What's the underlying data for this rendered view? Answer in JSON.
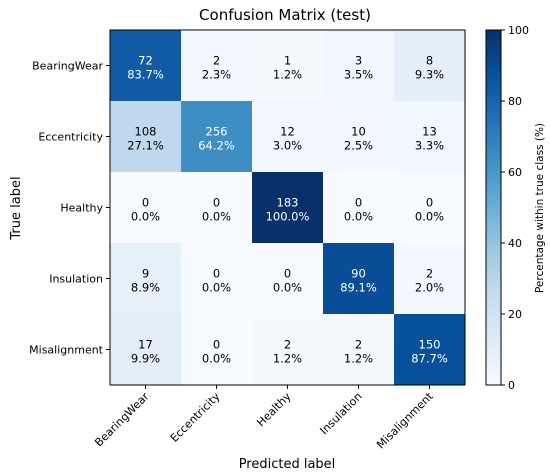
{
  "chart_data": {
    "type": "heatmap",
    "title": "Confusion Matrix (test)",
    "xlabel": "Predicted label",
    "ylabel": "True label",
    "x_categories": [
      "BearingWear",
      "Eccentricity",
      "Healthy",
      "Insulation",
      "Misalignment"
    ],
    "y_categories": [
      "BearingWear",
      "Eccentricity",
      "Healthy",
      "Insulation",
      "Misalignment"
    ],
    "counts": [
      [
        72,
        2,
        1,
        3,
        8
      ],
      [
        108,
        256,
        12,
        10,
        13
      ],
      [
        0,
        0,
        183,
        0,
        0
      ],
      [
        9,
        0,
        0,
        90,
        2
      ],
      [
        17,
        0,
        2,
        2,
        150
      ]
    ],
    "percent_labels": [
      [
        "83.7%",
        "2.3%",
        "1.2%",
        "3.5%",
        "9.3%"
      ],
      [
        "27.1%",
        "64.2%",
        "3.0%",
        "2.5%",
        "3.3%"
      ],
      [
        "0.0%",
        "0.0%",
        "100.0%",
        "0.0%",
        "0.0%"
      ],
      [
        "8.9%",
        "0.0%",
        "0.0%",
        "89.1%",
        "2.0%"
      ],
      [
        "9.9%",
        "0.0%",
        "1.2%",
        "1.2%",
        "87.7%"
      ]
    ],
    "percentages": [
      [
        83.7,
        2.3,
        1.2,
        3.5,
        9.3
      ],
      [
        27.1,
        64.2,
        3.0,
        2.5,
        3.3
      ],
      [
        0.0,
        0.0,
        100.0,
        0.0,
        0.0
      ],
      [
        8.9,
        0.0,
        0.0,
        89.1,
        2.0
      ],
      [
        9.9,
        0.0,
        1.2,
        1.2,
        87.7
      ]
    ],
    "colorbar": {
      "label": "Percentage within true class (%)",
      "range": [
        0,
        100
      ],
      "ticks": [
        "0",
        "20",
        "40",
        "60",
        "80",
        "100"
      ],
      "colormap": "Blues"
    }
  }
}
